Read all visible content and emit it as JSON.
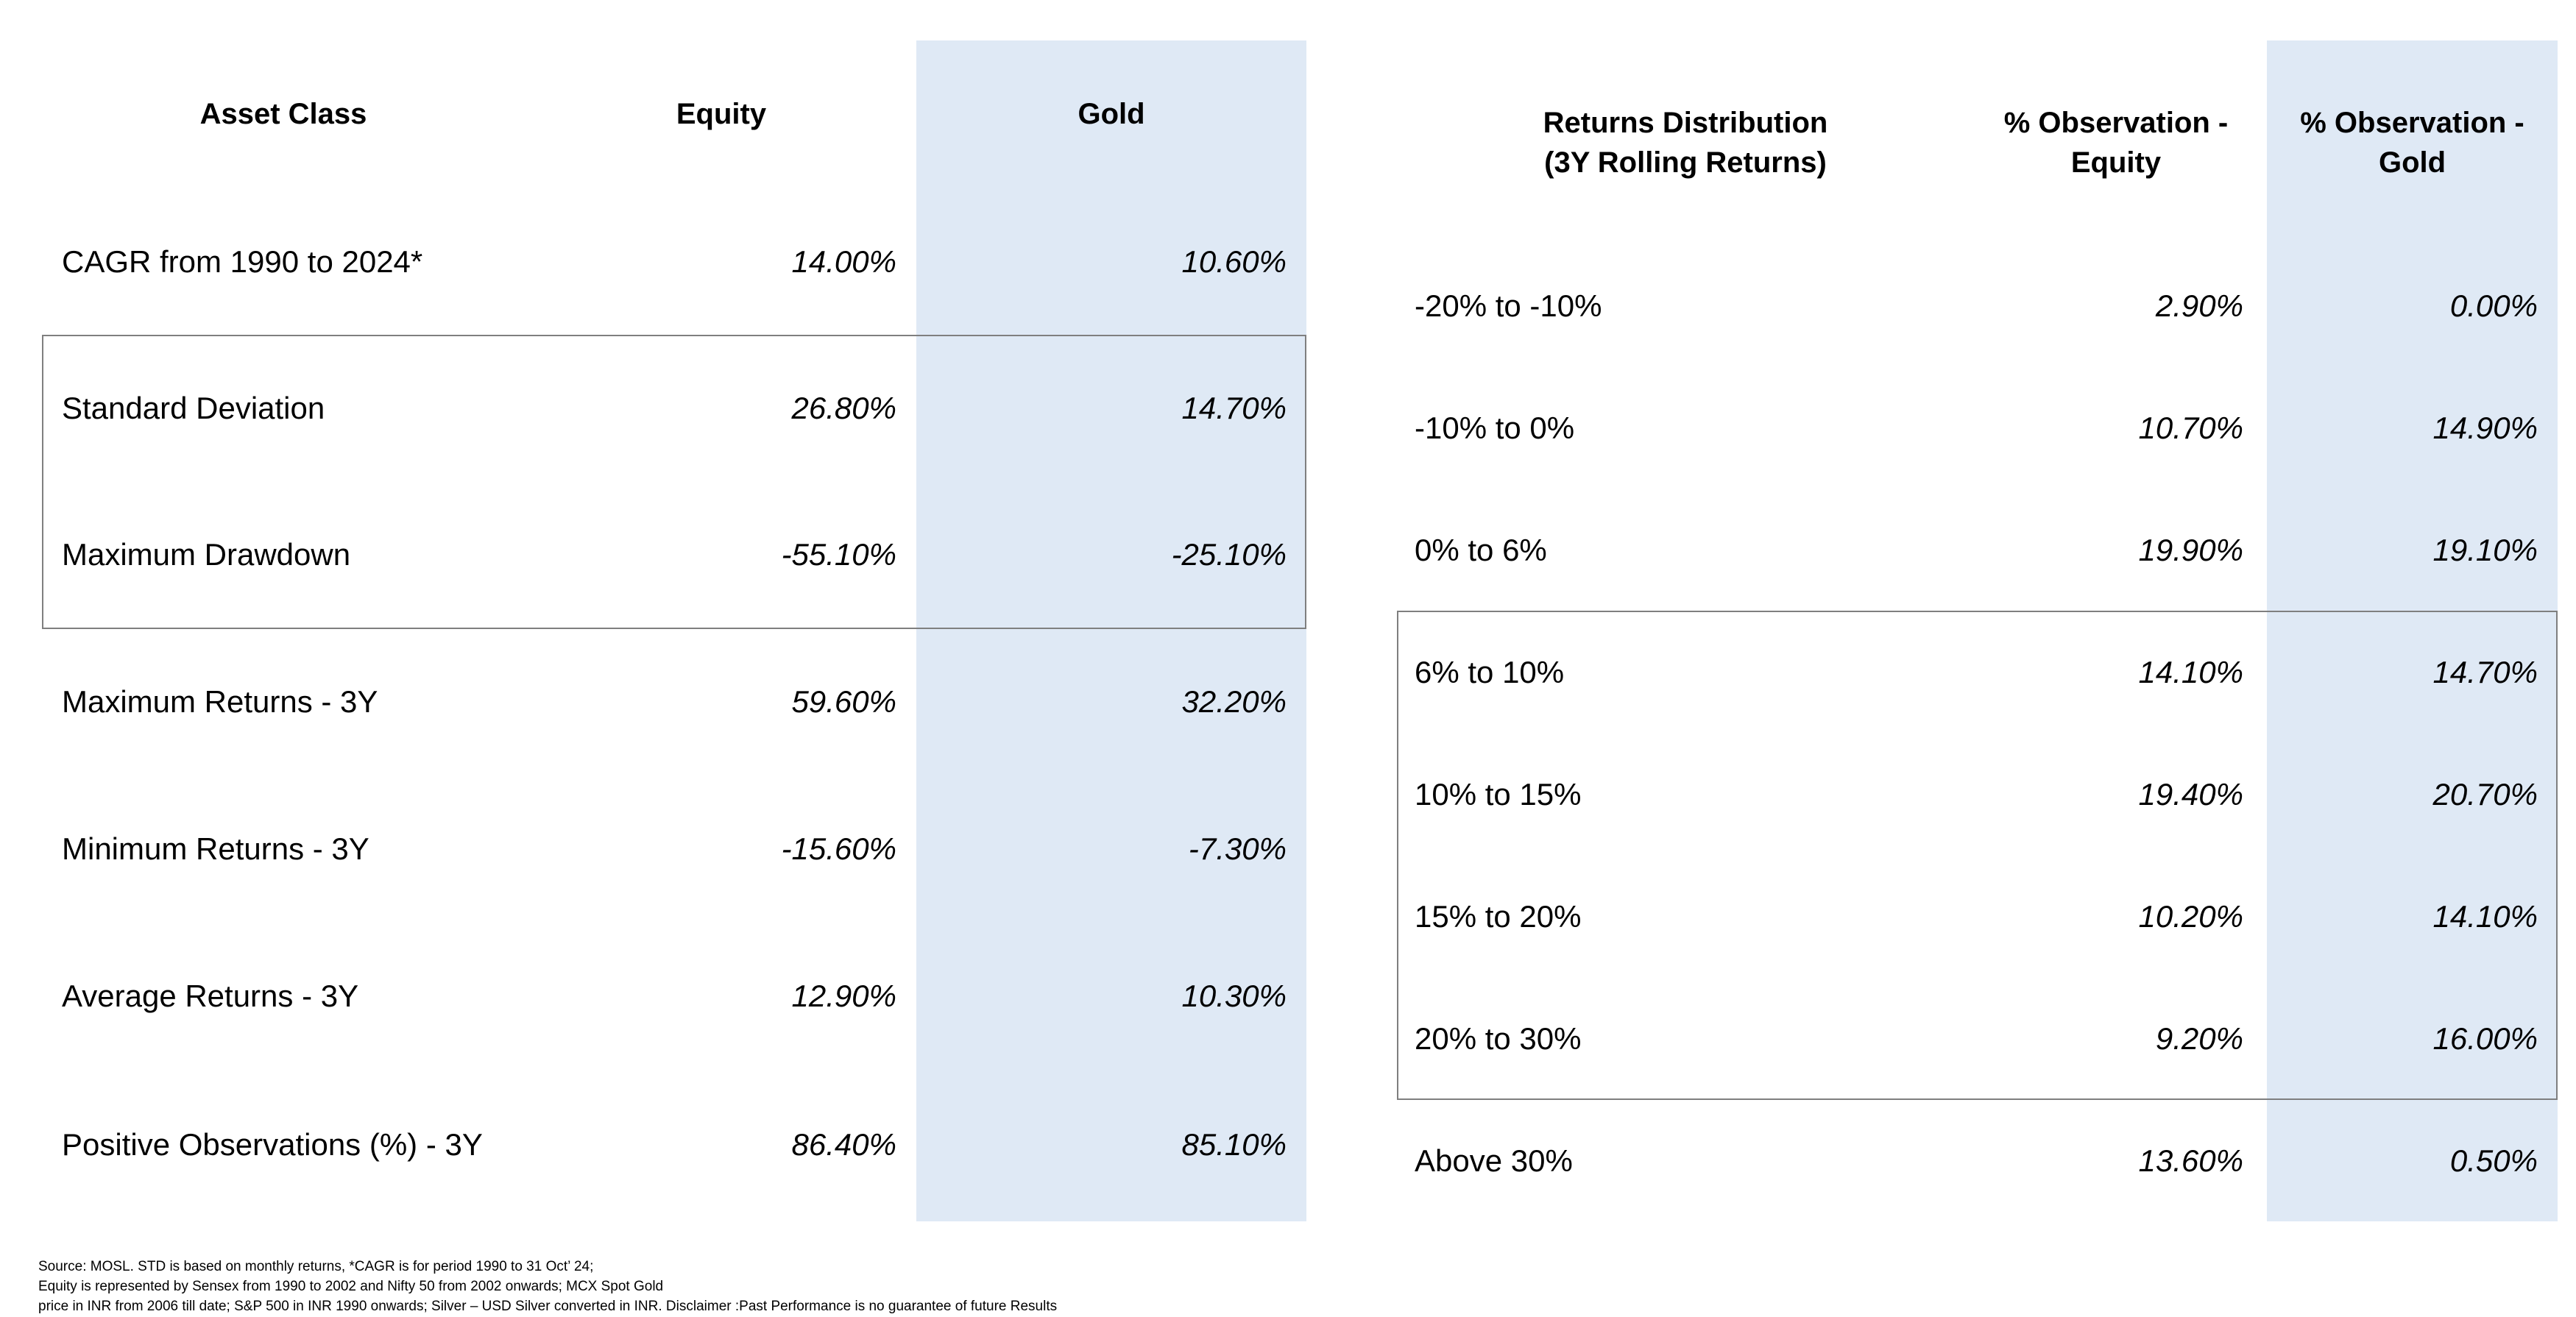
{
  "left_table": {
    "headers": {
      "asset_class": "Asset Class",
      "equity": "Equity",
      "gold": "Gold"
    },
    "rows": [
      {
        "label": "CAGR from 1990 to 2024*",
        "equity": "14.00%",
        "gold": "10.60%"
      },
      {
        "label": "Standard Deviation",
        "equity": "26.80%",
        "gold": "14.70%"
      },
      {
        "label": "Maximum Drawdown",
        "equity": "-55.10%",
        "gold": "-25.10%"
      },
      {
        "label": "Maximum Returns - 3Y",
        "equity": "59.60%",
        "gold": "32.20%"
      },
      {
        "label": "Minimum Returns - 3Y",
        "equity": "-15.60%",
        "gold": "-7.30%"
      },
      {
        "label": "Average Returns - 3Y",
        "equity": "12.90%",
        "gold": "10.30%"
      },
      {
        "label": "Positive Observations (%) - 3Y",
        "equity": "86.40%",
        "gold": "85.10%"
      }
    ]
  },
  "right_table": {
    "headers": {
      "distribution_line1": "Returns Distribution",
      "distribution_line2": "(3Y Rolling Returns)",
      "equity_line1": "% Observation -",
      "equity_line2": "Equity",
      "gold_line1": "% Observation -",
      "gold_line2": "Gold"
    },
    "rows": [
      {
        "label": "-20% to -10%",
        "equity": "2.90%",
        "gold": "0.00%"
      },
      {
        "label": "-10% to 0%",
        "equity": "10.70%",
        "gold": "14.90%"
      },
      {
        "label": "0% to 6%",
        "equity": "19.90%",
        "gold": "19.10%"
      },
      {
        "label": "6% to 10%",
        "equity": "14.10%",
        "gold": "14.70%"
      },
      {
        "label": "10% to 15%",
        "equity": "19.40%",
        "gold": "20.70%"
      },
      {
        "label": "15% to 20%",
        "equity": "10.20%",
        "gold": "14.10%"
      },
      {
        "label": "20% to 30%",
        "equity": "9.20%",
        "gold": "16.00%"
      },
      {
        "label": "Above 30%",
        "equity": "13.60%",
        "gold": "0.50%"
      }
    ]
  },
  "footnote": {
    "line1": "Source: MOSL. STD is based on monthly returns, *CAGR is for period 1990 to 31 Oct’ 24;",
    "line2": "Equity is represented by Sensex from 1990 to 2002 and Nifty 50 from 2002 onwards; MCX Spot Gold",
    "line3": "price in INR from 2006 till date; S&P 500 in INR 1990 onwards; Silver – USD Silver converted in INR. Disclaimer :Past Performance is no guarantee of future Results"
  },
  "colors": {
    "gold_column_shade": "#dfe9f5",
    "highlight_border": "#7f7f7f"
  }
}
